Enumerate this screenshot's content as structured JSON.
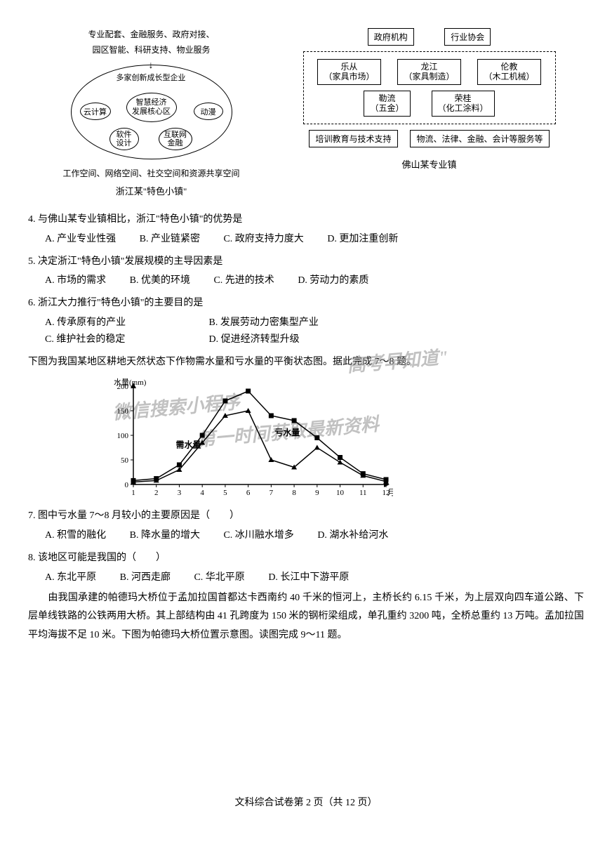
{
  "left_diagram": {
    "top_line1": "专业配套、金融服务、政府对接、",
    "top_line2": "园区智能、科研支持、物业服务",
    "inner_top": "多家创新成长型企业",
    "center_line1": "智慧经济",
    "center_line2": "发展核心区",
    "cloud": "云计算",
    "anime": "动漫",
    "soft_line1": "软件",
    "soft_line2": "设计",
    "net_line1": "互联网",
    "net_line2": "金融",
    "bottom_text": "工作空间、网络空间、社交空间和资源共享空间",
    "caption": "浙江某\"特色小镇\""
  },
  "right_diagram": {
    "gov": "政府机构",
    "assoc": "行业协会",
    "lecong_l1": "乐从",
    "lecong_l2": "（家具市场）",
    "longjiang_l1": "龙江",
    "longjiang_l2": "（家具制造）",
    "lunjiao_l1": "伦教",
    "lunjiao_l2": "（木工机械）",
    "leliu_l1": "勒流",
    "leliu_l2": "（五金）",
    "ronggui_l1": "荣桂",
    "ronggui_l2": "（化工涂料）",
    "training": "培训教育与技术支持",
    "services": "物流、法律、金融、会计等服务等",
    "caption": "佛山某专业镇"
  },
  "q4": {
    "text": "4. 与佛山某专业镇相比，浙江\"特色小镇\"的优势是",
    "a": "A. 产业专业性强",
    "b": "B. 产业链紧密",
    "c": "C. 政府支持力度大",
    "d": "D. 更加注重创新"
  },
  "q5": {
    "text": "5. 决定浙江\"特色小镇\"发展规模的主导因素是",
    "a": "A. 市场的需求",
    "b": "B. 优美的环境",
    "c": "C. 先进的技术",
    "d": "D. 劳动力的素质"
  },
  "q6": {
    "text": "6. 浙江大力推行\"特色小镇\"的主要目的是",
    "a": "A. 传承原有的产业",
    "b": "B. 发展劳动力密集型产业",
    "c": "C. 维护社会的稳定",
    "d": "D. 促进经济转型升级"
  },
  "intro78": "下图为我国某地区耕地天然状态下作物需水量和亏水量的平衡状态图。据此完成 7～8 题。",
  "chart": {
    "y_label": "水量(mm)",
    "y_max": 200,
    "y_ticks": [
      0,
      50,
      100,
      150,
      200
    ],
    "x_label": "月份",
    "x_ticks": [
      1,
      2,
      3,
      4,
      5,
      6,
      7,
      8,
      9,
      10,
      11,
      12
    ],
    "series_need": {
      "label": "需水量",
      "marker": "square",
      "values": [
        8,
        12,
        40,
        100,
        170,
        190,
        140,
        130,
        95,
        55,
        22,
        10
      ]
    },
    "series_deficit": {
      "label": "亏水量",
      "marker": "triangle",
      "values": [
        5,
        8,
        30,
        85,
        140,
        150,
        50,
        35,
        75,
        45,
        18,
        6
      ]
    },
    "line_color": "#000000",
    "background_color": "#ffffff"
  },
  "q7": {
    "text": "7. 图中亏水量 7～8 月较小的主要原因是（　　）",
    "a": "A. 积雪的融化",
    "b": "B. 降水量的增大",
    "c": "C. 冰川融水增多",
    "d": "D. 湖水补给河水"
  },
  "q8": {
    "text": "8. 该地区可能是我国的（　　）",
    "a": "A. 东北平原",
    "b": "B. 河西走廊",
    "c": "C. 华北平原",
    "d": "D. 长江中下游平原"
  },
  "intro911": "　　由我国承建的帕德玛大桥位于孟加拉国首都达卡西南约 40 千米的恒河上，主桥长约 6.15 千米，为上层双向四车道公路、下层单线铁路的公铁两用大桥。其上部结构由 41 孔跨度为 150 米的钢桁梁组成，单孔重约 3200 吨，全桥总重约 13 万吨。孟加拉国平均海拔不足 10 米。下图为帕德玛大桥位置示意图。读图完成 9～11 题。",
  "watermark1": "\"高考早知道\"",
  "watermark2": "微信搜索小程序",
  "watermark3": "第一时间获取最新资料",
  "footer": "文科综合试卷第 2 页（共 12 页）"
}
